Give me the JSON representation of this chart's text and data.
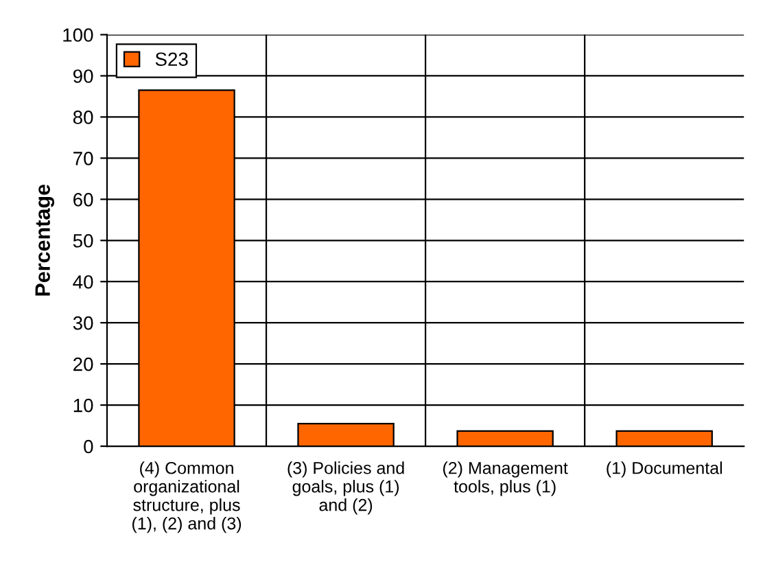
{
  "chart_data": {
    "type": "bar",
    "ylabel": "Percentage",
    "categories": [
      "(4) Common\norganizational\nstructure, plus\n(1), (2) and (3)",
      "(3) Policies and\ngoals, plus (1)\nand (2)",
      "(2) Management\ntools, plus (1)",
      "(1) Documental"
    ],
    "series": [
      {
        "name": "S23",
        "color": "#ff6600",
        "values": [
          86.5,
          5.5,
          3.7,
          3.7
        ]
      }
    ],
    "ylim": [
      0,
      100
    ],
    "yticks": [
      0,
      10,
      20,
      30,
      40,
      50,
      60,
      70,
      80,
      90,
      100
    ],
    "grid": true,
    "legend": "top left"
  }
}
